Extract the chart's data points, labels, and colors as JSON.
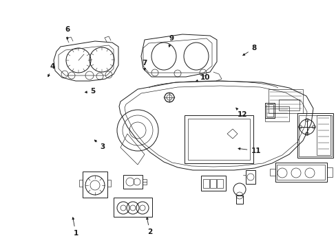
{
  "background_color": "#ffffff",
  "line_color": "#1a1a1a",
  "lw_main": 0.7,
  "lw_thin": 0.45,
  "fig_w": 4.89,
  "fig_h": 3.6,
  "dpi": 100,
  "labels": {
    "1": [
      0.225,
      0.945,
      0.215,
      0.87
    ],
    "2": [
      0.445,
      0.94,
      0.435,
      0.87
    ],
    "3": [
      0.305,
      0.595,
      0.275,
      0.56
    ],
    "4": [
      0.155,
      0.27,
      0.14,
      0.32
    ],
    "5": [
      0.275,
      0.37,
      0.245,
      0.375
    ],
    "6": [
      0.2,
      0.12,
      0.2,
      0.17
    ],
    "7": [
      0.43,
      0.255,
      0.43,
      0.295
    ],
    "8": [
      0.755,
      0.195,
      0.715,
      0.23
    ],
    "9": [
      0.51,
      0.155,
      0.5,
      0.2
    ],
    "10": [
      0.61,
      0.315,
      0.58,
      0.33
    ],
    "11": [
      0.76,
      0.61,
      0.7,
      0.6
    ],
    "12": [
      0.72,
      0.465,
      0.7,
      0.435
    ]
  }
}
